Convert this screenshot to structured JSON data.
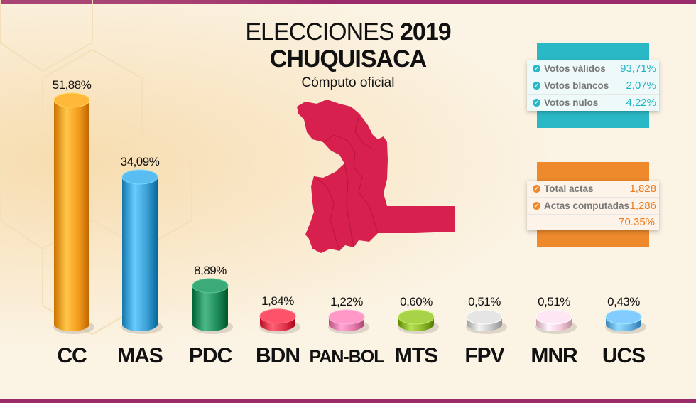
{
  "header": {
    "title_prefix": "ELECCIONES",
    "title_year": "2019",
    "region": "CHUQUISACA",
    "caption": "Cómputo oficial"
  },
  "colors": {
    "frame": "#9b2a6a",
    "map": "#d8204f",
    "teal": "#2bb8c6",
    "orange": "#ee8a2c"
  },
  "chart_data": {
    "type": "bar",
    "categories": [
      "CC",
      "MAS",
      "PDC",
      "BDN",
      "PAN-BOL",
      "MTS",
      "FPV",
      "MNR",
      "UCS"
    ],
    "values": [
      51.88,
      34.09,
      8.89,
      1.84,
      1.22,
      0.6,
      0.51,
      0.51,
      0.43
    ],
    "value_labels": [
      "51,88%",
      "34,09%",
      "8,89%",
      "1,84%",
      "1,22%",
      "0,60%",
      "0,51%",
      "0,51%",
      "0,43%"
    ],
    "bar_colors": [
      "#f39a1c",
      "#3b9fd3",
      "#1f8c5c",
      "#e0344a",
      "#e57aa8",
      "#8ab42a",
      "#c7c7c7",
      "#f2c8d6",
      "#64aee2"
    ],
    "ylim": [
      0,
      55
    ],
    "grid": false,
    "legend": "none"
  },
  "vote_panel": {
    "rows": [
      {
        "label": "Votos válidos",
        "value": "93,71%"
      },
      {
        "label": "Votos blancos",
        "value": "2,07%"
      },
      {
        "label": "Votos nulos",
        "value": "4,22%"
      }
    ]
  },
  "actas_panel": {
    "rows": [
      {
        "label": "Total actas",
        "value": "1,828"
      },
      {
        "label": "Actas computadas",
        "value": "1,286"
      }
    ],
    "percent": "70.35%"
  }
}
